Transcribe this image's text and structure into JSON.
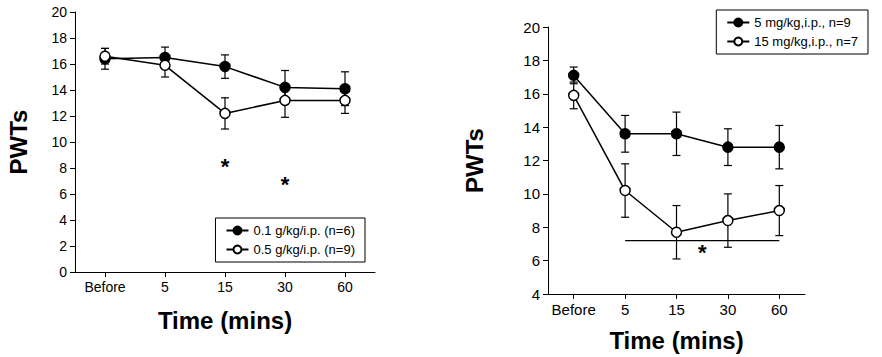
{
  "chart_data": [
    {
      "type": "line",
      "x_label": "Time (mins)",
      "y_label": "PWTs",
      "categories": [
        "Before",
        "5",
        "15",
        "30",
        "60"
      ],
      "series": [
        {
          "name": "0.1 g/kg/i.p. (n=6)",
          "color": "#000000",
          "marker": "filled_circle",
          "values": [
            16.4,
            16.5,
            15.8,
            14.2,
            14.1
          ],
          "errors": [
            0.8,
            0.8,
            0.9,
            1.3,
            1.3
          ]
        },
        {
          "name": "0.5 g/kg/i.p. (n=9)",
          "color": "#000000",
          "marker": "open_circle",
          "values": [
            16.6,
            15.9,
            12.2,
            13.2,
            13.2
          ],
          "errors": [
            0.6,
            0.9,
            1.2,
            1.3,
            1.0
          ]
        }
      ],
      "ylim": [
        0,
        20
      ],
      "yticks": [
        0,
        2,
        4,
        6,
        8,
        10,
        12,
        14,
        16,
        18,
        20
      ],
      "grid": false,
      "legend": "lower right",
      "annotations": [
        {
          "text": "*",
          "x": "15",
          "y": 8.1
        },
        {
          "text": "*",
          "x": "30",
          "y": 6.7
        }
      ]
    },
    {
      "type": "line",
      "x_label": "Time (mins)",
      "y_label": "PWTs",
      "categories": [
        "Before",
        "5",
        "15",
        "30",
        "60"
      ],
      "series": [
        {
          "name": "5 mg/kg,i.p., n=9",
          "color": "#000000",
          "marker": "filled_circle",
          "values": [
            17.1,
            13.6,
            13.6,
            12.8,
            12.8
          ],
          "errors": [
            0.5,
            1.1,
            1.3,
            1.1,
            1.3
          ]
        },
        {
          "name": "15 mg/kg,i.p., n=7",
          "color": "#000000",
          "marker": "open_circle",
          "values": [
            15.9,
            10.2,
            7.7,
            8.4,
            9.0
          ],
          "errors": [
            0.8,
            1.6,
            1.6,
            1.6,
            1.5
          ]
        }
      ],
      "ylim": [
        4,
        20
      ],
      "yticks": [
        4,
        6,
        8,
        10,
        12,
        14,
        16,
        18,
        20
      ],
      "grid": false,
      "legend": "upper right",
      "annotations": [
        {
          "text": "*",
          "x": [
            "5",
            "60"
          ],
          "y": 6.5,
          "line_y": 7.2
        }
      ]
    }
  ]
}
